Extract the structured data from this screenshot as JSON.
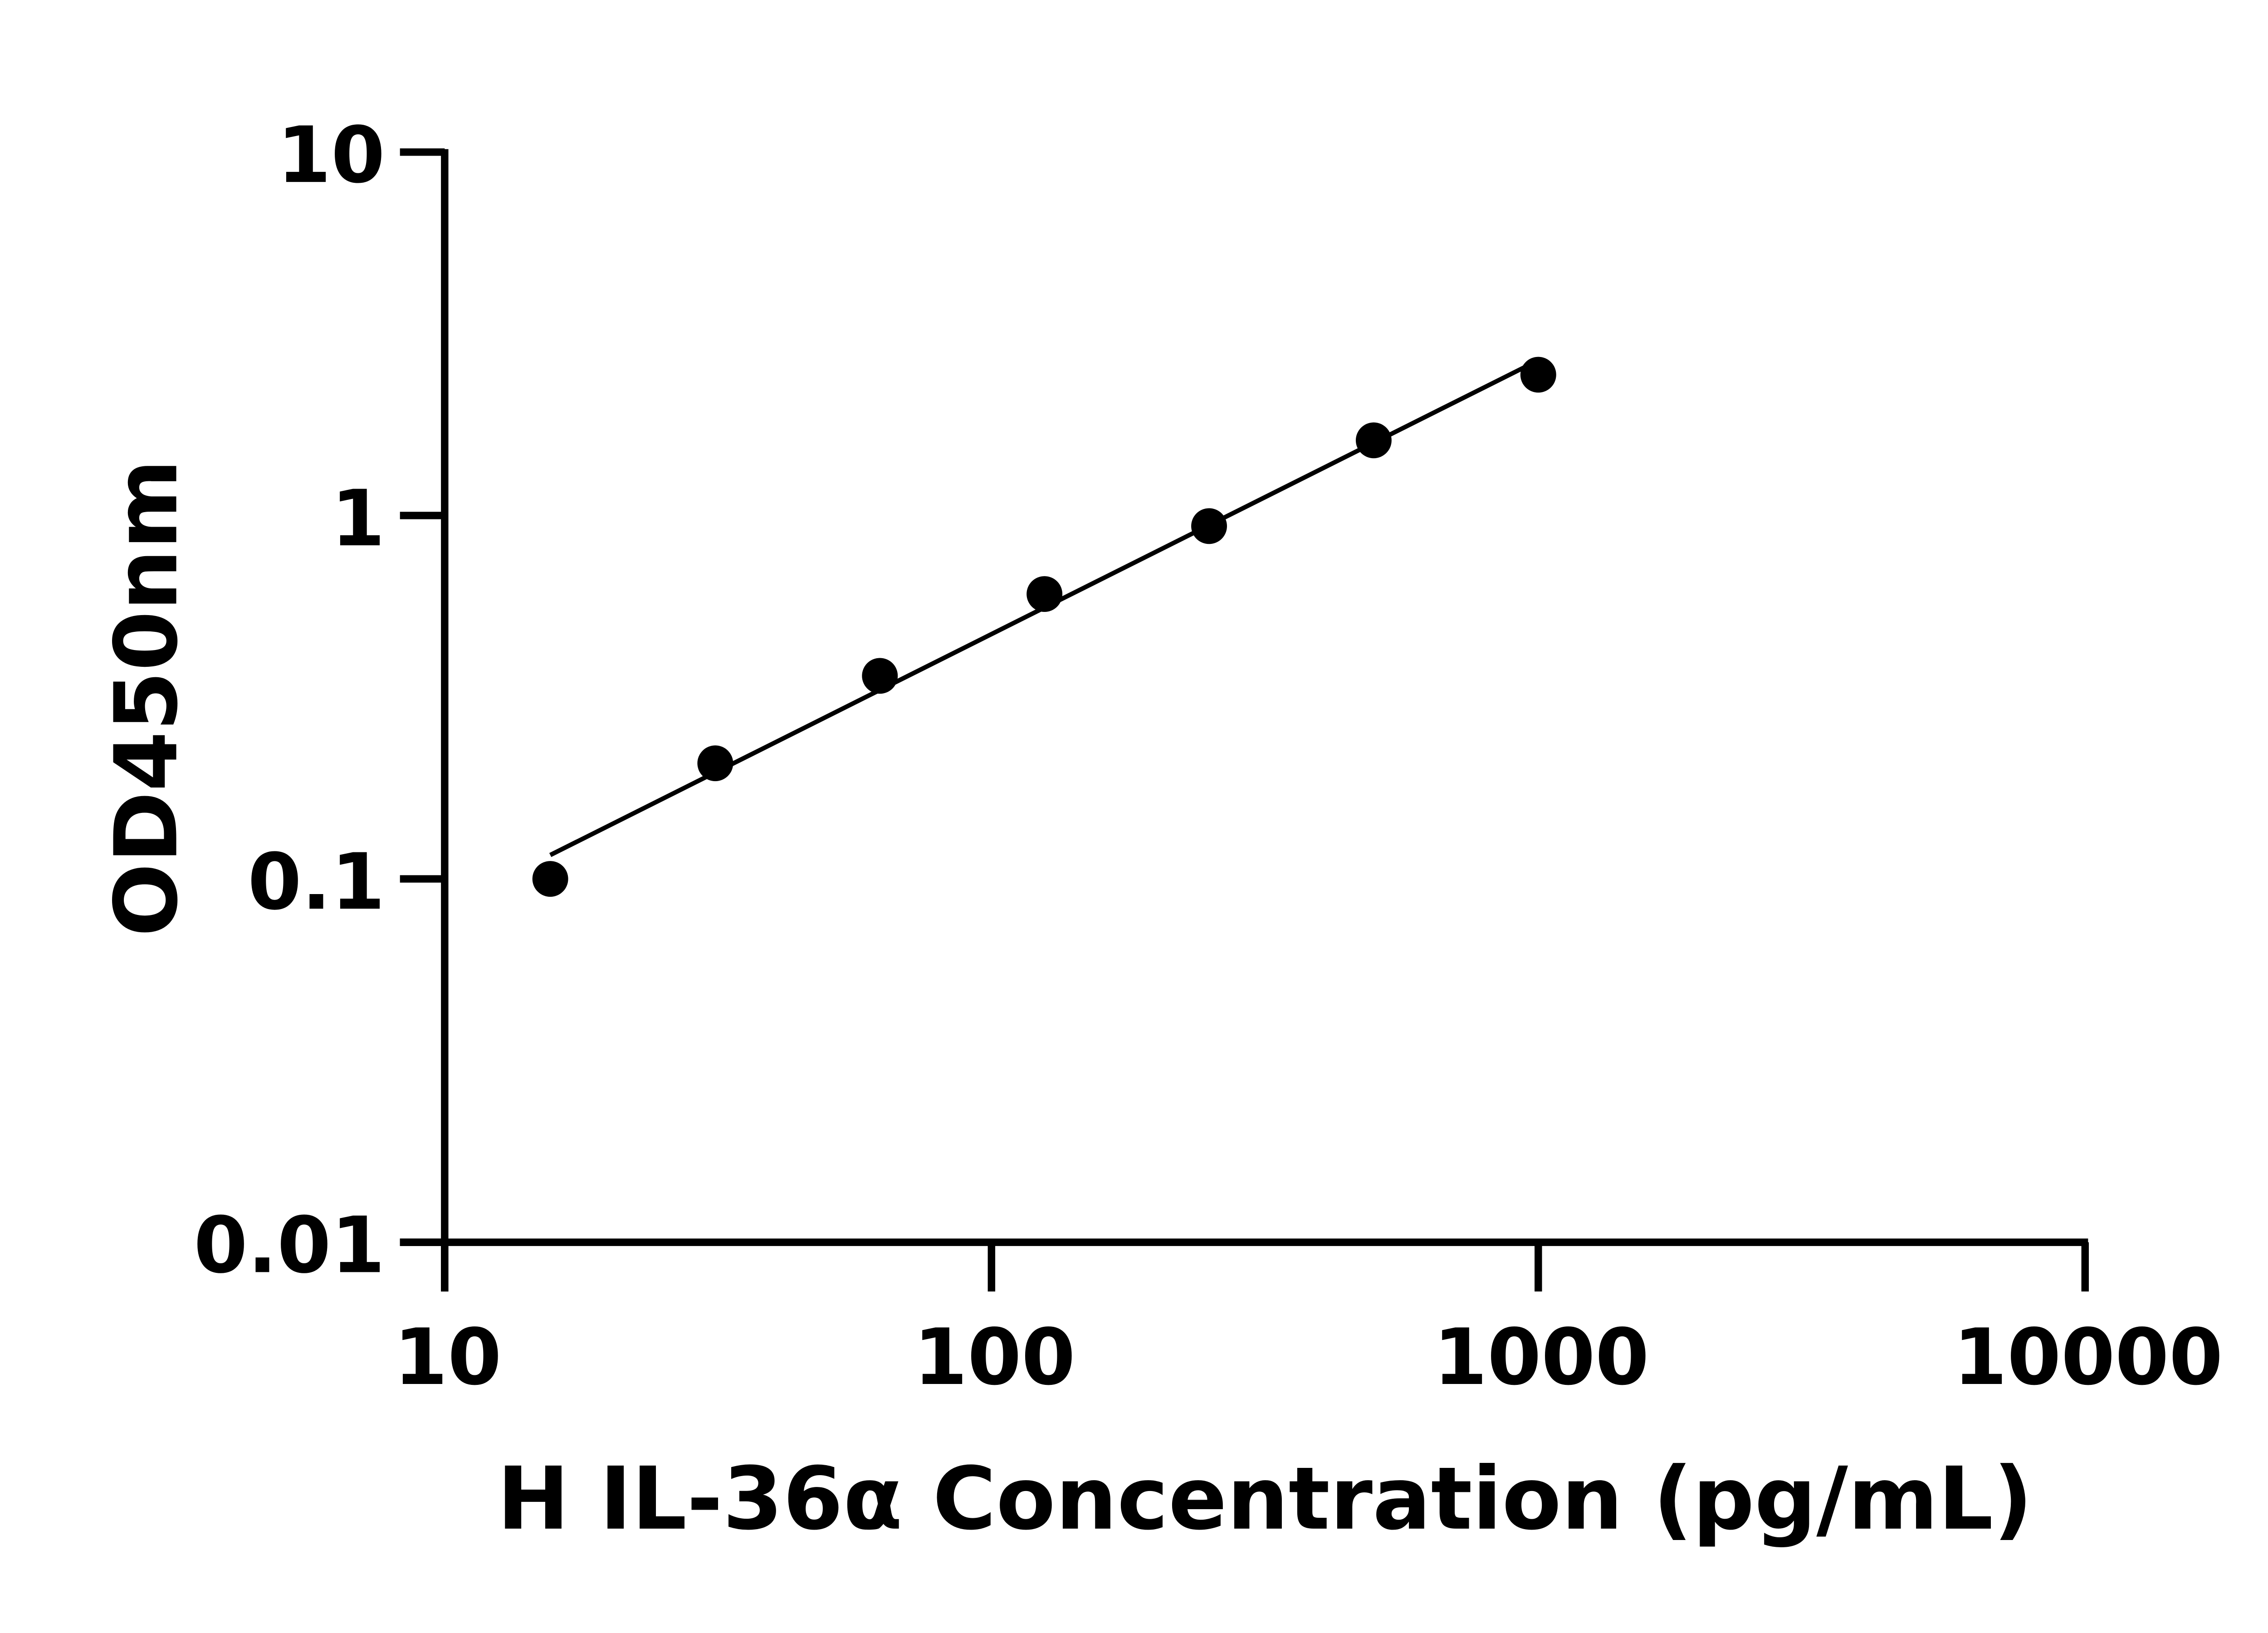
{
  "chart_data": {
    "type": "scatter",
    "title": "",
    "xlabel": "H IL-36α Concentration (pg/mL)",
    "ylabel": "OD450nm",
    "x_scale": "log",
    "y_scale": "log",
    "xlim": [
      10,
      10000
    ],
    "ylim": [
      0.01,
      10
    ],
    "x_ticks": [
      "10",
      "100",
      "1000",
      "10000"
    ],
    "y_ticks": [
      "0.01",
      "0.1",
      "1",
      "10"
    ],
    "grid": false,
    "legend": "none",
    "fit_line": true,
    "series": [
      {
        "x": [
          15.6,
          31.25,
          62.5,
          125,
          250,
          500,
          1000
        ],
        "y": [
          0.1,
          0.208,
          0.362,
          0.608,
          0.935,
          1.61,
          2.44
        ]
      }
    ],
    "colors": {
      "points": "#000000",
      "axes": "#000000"
    }
  }
}
